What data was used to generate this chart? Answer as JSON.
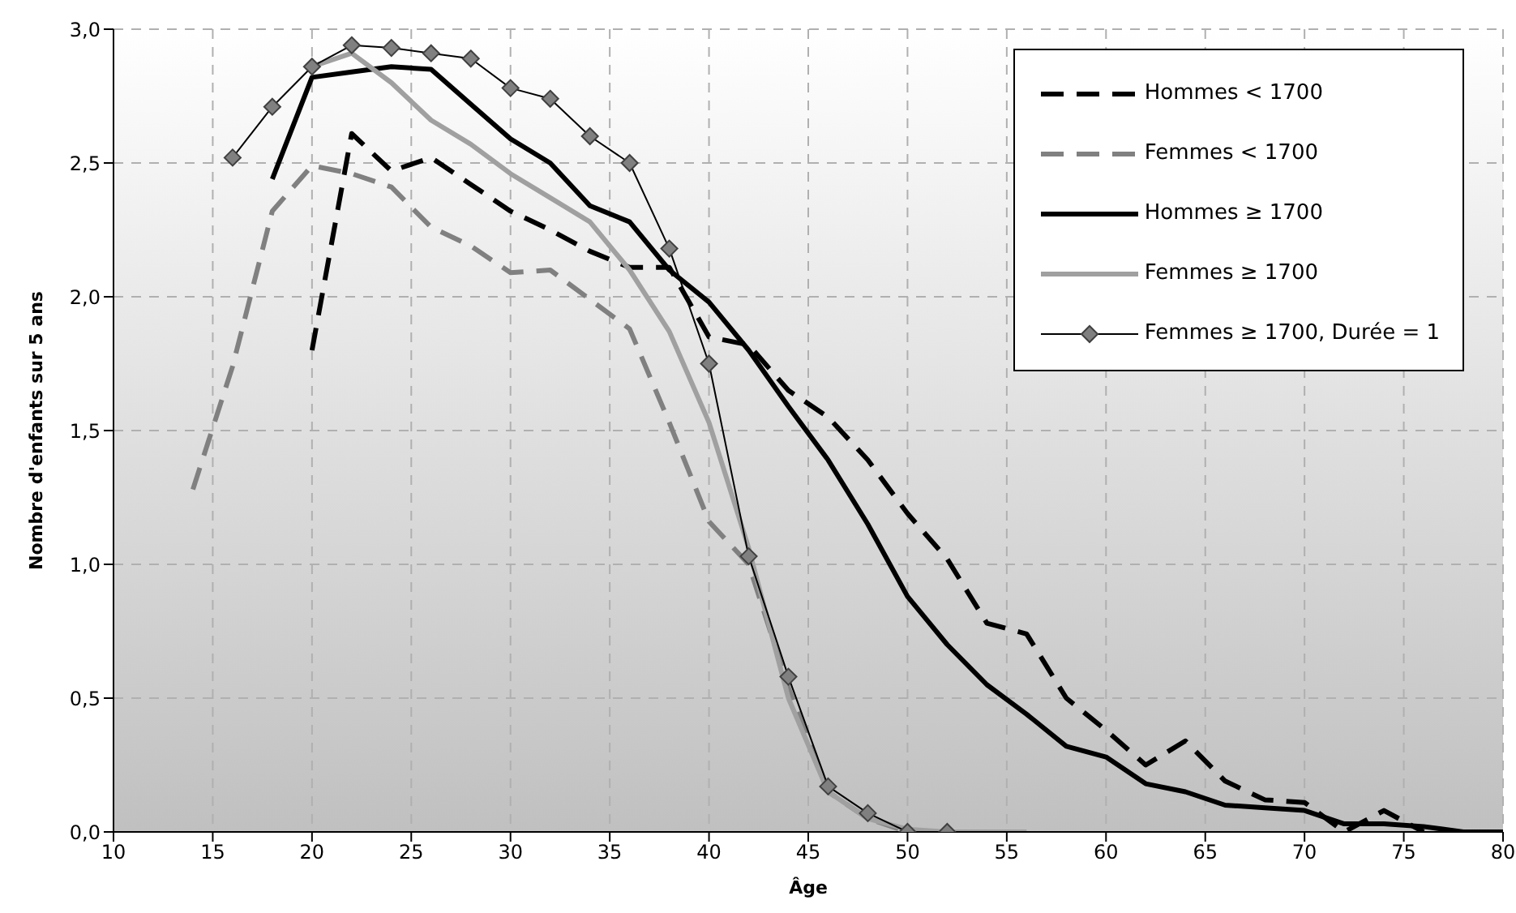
{
  "chart_data": {
    "type": "line",
    "xlabel": "Âge",
    "ylabel": "Nombre d'enfants sur 5 ans",
    "xlim": [
      10,
      80
    ],
    "xticks": [
      10,
      15,
      20,
      25,
      30,
      35,
      40,
      45,
      50,
      55,
      60,
      65,
      70,
      75,
      80
    ],
    "ylim": [
      0,
      3
    ],
    "yticks": [
      {
        "value": 0,
        "label": "0,0"
      },
      {
        "value": 0.5,
        "label": "0,5"
      },
      {
        "value": 1,
        "label": "1,0"
      },
      {
        "value": 1.5,
        "label": "1,5"
      },
      {
        "value": 2,
        "label": "2,0"
      },
      {
        "value": 2.5,
        "label": "2,5"
      },
      {
        "value": 3,
        "label": "3,0"
      }
    ],
    "grid": true,
    "legend": "top right",
    "series": [
      {
        "name": "Hommes < 1700",
        "color": "#000000",
        "line_style": "dashed",
        "marker": "none",
        "x": [
          20,
          22,
          24,
          26,
          28,
          30,
          32,
          34,
          36,
          38,
          40,
          42,
          44,
          46,
          48,
          50,
          52,
          54,
          56,
          58,
          60,
          62,
          64,
          66,
          68,
          70,
          72,
          74,
          76
        ],
        "values": [
          1.8,
          2.61,
          2.47,
          2.52,
          2.42,
          2.32,
          2.25,
          2.17,
          2.11,
          2.11,
          1.85,
          1.82,
          1.65,
          1.55,
          1.39,
          1.19,
          1.02,
          0.78,
          0.74,
          0.5,
          0.38,
          0.25,
          0.34,
          0.19,
          0.12,
          0.11,
          0.0,
          0.08,
          0.0
        ]
      },
      {
        "name": "Femmes < 1700",
        "color": "#808080",
        "line_style": "dashed",
        "marker": "none",
        "x": [
          14,
          16,
          18,
          20,
          22,
          24,
          26,
          28,
          30,
          32,
          34,
          36,
          38,
          40,
          42,
          44,
          46,
          48,
          50
        ],
        "values": [
          1.28,
          1.74,
          2.32,
          2.49,
          2.46,
          2.41,
          2.26,
          2.19,
          2.09,
          2.1,
          1.99,
          1.88,
          1.53,
          1.16,
          1.0,
          0.54,
          0.15,
          0.05,
          0.0
        ]
      },
      {
        "name": "Hommes ≥ 1700",
        "color": "#000000",
        "line_style": "solid",
        "marker": "none",
        "x": [
          18,
          20,
          22,
          24,
          26,
          28,
          30,
          32,
          34,
          36,
          38,
          40,
          42,
          44,
          46,
          48,
          50,
          52,
          54,
          56,
          58,
          60,
          62,
          64,
          66,
          68,
          70,
          72,
          74,
          76,
          78,
          80
        ],
        "values": [
          2.44,
          2.82,
          2.84,
          2.86,
          2.85,
          2.72,
          2.59,
          2.5,
          2.34,
          2.28,
          2.1,
          1.98,
          1.8,
          1.59,
          1.39,
          1.15,
          0.88,
          0.7,
          0.55,
          0.44,
          0.32,
          0.28,
          0.18,
          0.15,
          0.1,
          0.09,
          0.08,
          0.03,
          0.03,
          0.02,
          0.0,
          0.0
        ]
      },
      {
        "name": "Femmes ≥ 1700",
        "color": "#a0a0a0",
        "line_style": "solid",
        "marker": "none",
        "x": [
          20,
          22,
          24,
          26,
          28,
          30,
          32,
          34,
          36,
          38,
          40,
          42,
          44,
          46,
          48,
          50,
          52,
          54,
          56
        ],
        "values": [
          2.86,
          2.91,
          2.8,
          2.66,
          2.57,
          2.46,
          2.37,
          2.28,
          2.1,
          1.87,
          1.53,
          1.06,
          0.5,
          0.15,
          0.05,
          0.01,
          0.0,
          0.0,
          0.0
        ]
      },
      {
        "name": "Femmes ≥ 1700, Durée = 1",
        "color": "#000000",
        "line_style": "solid",
        "marker": "diamond",
        "x": [
          16,
          18,
          20,
          22,
          24,
          26,
          28,
          30,
          32,
          34,
          36,
          38,
          40,
          42,
          44,
          46,
          48,
          50,
          52
        ],
        "values": [
          2.52,
          2.71,
          2.86,
          2.94,
          2.93,
          2.91,
          2.89,
          2.78,
          2.74,
          2.6,
          2.5,
          2.18,
          1.75,
          1.03,
          0.58,
          0.17,
          0.07,
          0.0,
          0.0
        ]
      }
    ]
  }
}
